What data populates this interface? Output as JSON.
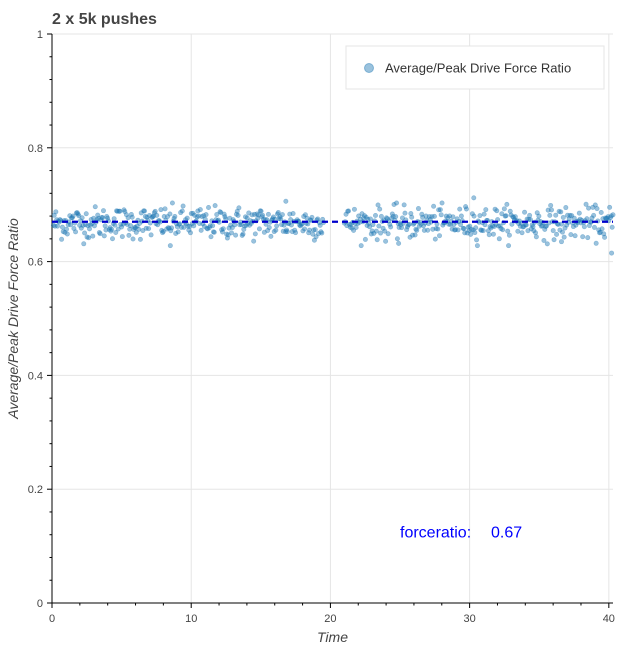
{
  "chart_data": {
    "type": "scatter",
    "title": "2 x 5k pushes",
    "xlabel": "Time",
    "ylabel": "Average/Peak Drive Force Ratio",
    "xlim": [
      0,
      40.3
    ],
    "ylim": [
      0,
      1
    ],
    "x_ticks": [
      0,
      10,
      20,
      30,
      40
    ],
    "y_ticks": [
      0,
      0.2,
      0.4,
      0.6,
      0.8,
      1
    ],
    "x_tick_labels": [
      "0",
      "10",
      "20",
      "30",
      "40"
    ],
    "y_tick_labels": [
      "0",
      "0.2",
      "0.4",
      "0.6",
      "0.8",
      "1"
    ],
    "grid": true,
    "legend_position": "top-right",
    "series": [
      {
        "name": "Average/Peak Drive Force Ratio",
        "color": "#1f77b4",
        "segments": [
          {
            "x_start": 0.1,
            "x_end": 19.5,
            "count": 330
          },
          {
            "x_start": 21.0,
            "x_end": 40.3,
            "count": 320
          }
        ],
        "center": 0.668,
        "spread": 0.014,
        "outliers": [
          {
            "x": 8.5,
            "y": 0.628
          },
          {
            "x": 16.8,
            "y": 0.706
          },
          {
            "x": 24.9,
            "y": 0.632
          },
          {
            "x": 30.3,
            "y": 0.712
          },
          {
            "x": 36.6,
            "y": 0.635
          },
          {
            "x": 40.2,
            "y": 0.615
          }
        ]
      }
    ],
    "mean_line": {
      "label": "forceratio",
      "value": 0.67,
      "color": "#0000cc",
      "style": "dashed"
    },
    "annotation": {
      "label": "forceratio:",
      "value": "0.67",
      "x": 25,
      "y": 0.115
    }
  }
}
